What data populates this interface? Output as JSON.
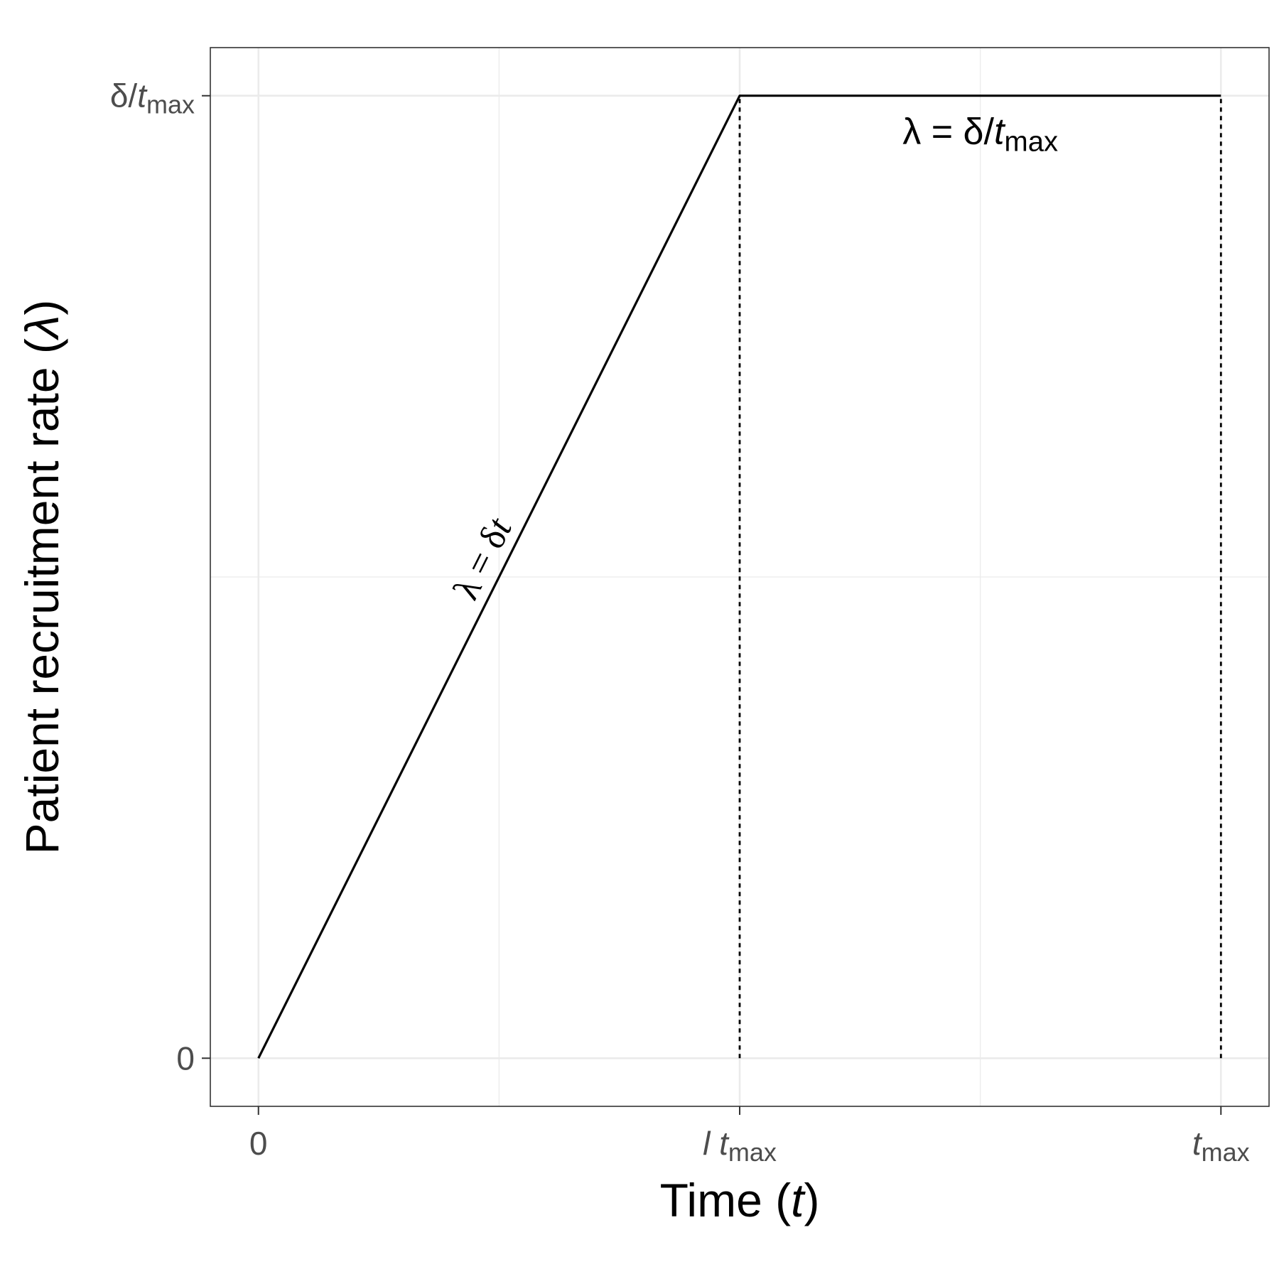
{
  "chart_data": {
    "type": "line",
    "xlabel": {
      "prefix": "Time (",
      "var": "t",
      "suffix": ")"
    },
    "ylabel": {
      "text": "Patient recruitment rate (",
      "symbol": "λ",
      "suffix": ")"
    },
    "x_ticks": [
      {
        "value": 0,
        "main": "0",
        "italic": false,
        "sub": ""
      },
      {
        "value": 1,
        "main": "l t",
        "italic": true,
        "sub": "max"
      },
      {
        "value": 2,
        "main": "t",
        "italic": true,
        "sub": "max"
      }
    ],
    "y_ticks": [
      {
        "value": 0,
        "main": "0",
        "sub": ""
      },
      {
        "value": 1,
        "main_pre": "δ/",
        "main_var": "t",
        "sub": "max"
      }
    ],
    "xlim": [
      -0.1,
      2.1
    ],
    "ylim": [
      -0.05,
      1.05
    ],
    "grid": true,
    "series": [
      {
        "style": "solid",
        "points": [
          [
            0,
            0
          ],
          [
            1,
            1
          ],
          [
            2,
            1
          ]
        ]
      },
      {
        "style": "dotted",
        "points": [
          [
            1,
            0
          ],
          [
            1,
            1
          ]
        ]
      },
      {
        "style": "dotted",
        "points": [
          [
            2,
            0
          ],
          [
            2,
            1
          ]
        ]
      }
    ],
    "annotations": [
      {
        "id": "ramp",
        "pre": "λ = δ",
        "var": "t"
      },
      {
        "id": "plateau",
        "pre": "λ = δ/",
        "var": "t",
        "sub": "max"
      }
    ]
  }
}
